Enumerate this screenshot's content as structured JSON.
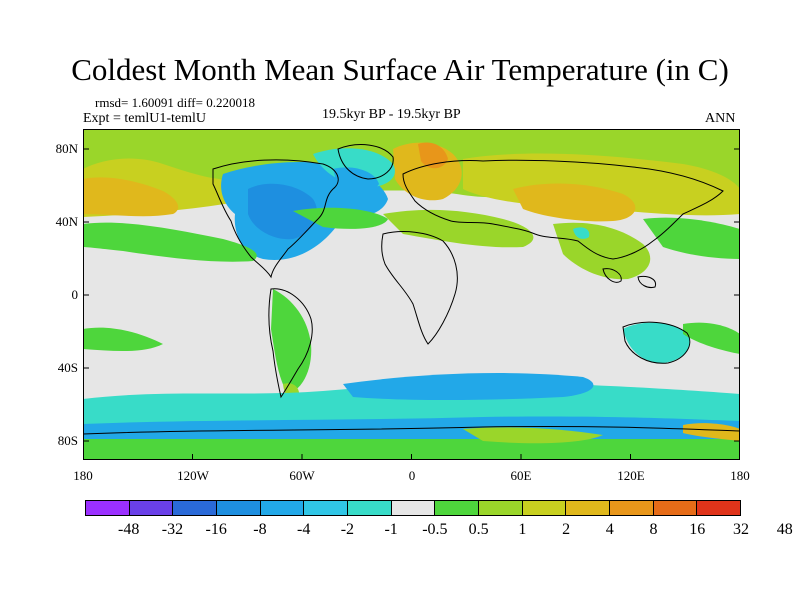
{
  "title": "Coldest Month Mean Surface Air Temperature (in C)",
  "stats": "rmsd= 1.60091 diff= 0.220018",
  "expt": "Expt = temlU1-temlU",
  "period": "19.5kyr BP - 19.5kyr BP",
  "season": "ANN",
  "lat_labels": [
    "80N",
    "40N",
    "0",
    "40S",
    "80S"
  ],
  "lon_labels": [
    "180",
    "120W",
    "60W",
    "0",
    "60E",
    "120E",
    "180"
  ],
  "colorbar": {
    "colors": [
      "#9b30ff",
      "#6a40e8",
      "#2a6ad8",
      "#1e8fe0",
      "#22a8e8",
      "#30c6e6",
      "#38dcc8",
      "#e6e6e6",
      "#4ed63c",
      "#9ad62a",
      "#c8d020",
      "#e0b81c",
      "#e8961a",
      "#e66c18",
      "#e0341a"
    ],
    "labels": [
      "-48",
      "-32",
      "-16",
      "-8",
      "-4",
      "-2",
      "-1",
      "-0.5",
      "0.5",
      "1",
      "2",
      "4",
      "8",
      "16",
      "32",
      "48"
    ]
  }
}
